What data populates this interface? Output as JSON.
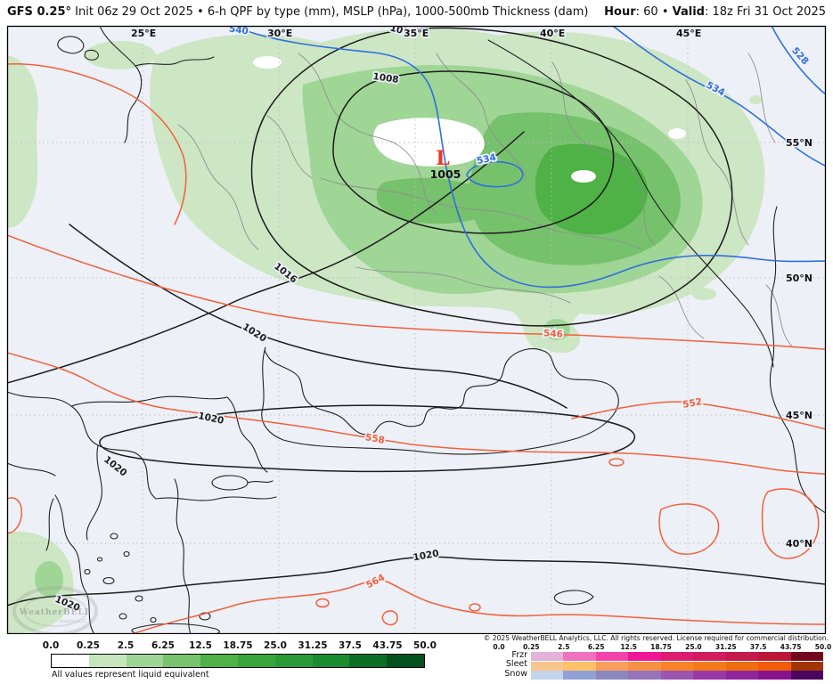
{
  "header": {
    "model": "GFS 0.25°",
    "init": "Init 06z 29 Oct 2025",
    "sep": "•",
    "product": "6-h QPF by type (mm), MSLP (hPa), 1000-500mb Thickness (dam)",
    "hour_label": "Hour",
    "colon": ": ",
    "hour_value": "60",
    "valid_label": "Valid",
    "valid_value": "18z Fri 31 Oct 2025"
  },
  "map": {
    "graticule": {
      "lon_labels": [
        "25°E",
        "30°E",
        "35°E",
        "40°E",
        "45°E"
      ],
      "lat_labels": [
        "55°N",
        "50°N",
        "45°N",
        "40°N"
      ]
    },
    "low_marker": {
      "symbol": "L",
      "pressure": "1005"
    },
    "isobar_labels": [
      "1008",
      "1012",
      "1016",
      "1020",
      "1020",
      "1020",
      "1020",
      "1020"
    ],
    "thickness_labels_below_540": [
      "528",
      "534",
      "534",
      "540"
    ],
    "thickness_labels_above_540": [
      "546",
      "552",
      "558",
      "564"
    ],
    "colors": {
      "mslp_contour": "#1c1c1c",
      "thickness_low": "#2f6fe0",
      "thickness_high": "#f2603a",
      "precip_light": "#cde6c4",
      "precip_medium": "#9fd595",
      "precip_dark": "#76c16c",
      "precip_darkest": "#4fb246"
    },
    "watermark": {
      "title": "WeatherBELL",
      "subtitle": "Analytics LLC"
    }
  },
  "legend_left": {
    "ticks": [
      "0.0",
      "0.25",
      "2.5",
      "6.25",
      "12.5",
      "18.75",
      "25.0",
      "31.25",
      "37.5",
      "43.75",
      "50.0"
    ],
    "colors": [
      "#ffffff",
      "#c6e5bc",
      "#a0d695",
      "#77c46c",
      "#4fb246",
      "#38a63b",
      "#2a9a36",
      "#1b8b2f",
      "#0a6f24",
      "#05511c"
    ],
    "caption": "All values represent liquid equivalent"
  },
  "legend_right": {
    "ticks": [
      "0.0",
      "0.25",
      "2.5",
      "6.25",
      "12.5",
      "18.75",
      "25.0",
      "31.25",
      "37.5",
      "43.75",
      "50.0"
    ],
    "rows": [
      {
        "label": "Frzr",
        "colors": [
          "#e2b2d8",
          "#ee72c0",
          "#f442ab",
          "#ef1795",
          "#de1a71",
          "#d11b5c",
          "#c6184a",
          "#bb1638",
          "#73081c"
        ]
      },
      {
        "label": "Sleet",
        "colors": [
          "#f7c68e",
          "#fcc169",
          "#f99e5d",
          "#f89048",
          "#f8822a",
          "#f47a1b",
          "#ee6d10",
          "#f15c09",
          "#a33504"
        ]
      },
      {
        "label": "Snow",
        "colors": [
          "#c4d4eb",
          "#92a1d5",
          "#8d87c0",
          "#9673ba",
          "#9c55b1",
          "#9939a8",
          "#90259b",
          "#87128d",
          "#4b0560"
        ]
      }
    ]
  },
  "copyright": "© 2025 WeatherBELL Analytics, LLC. All rights reserved. License required for commercial distribution."
}
